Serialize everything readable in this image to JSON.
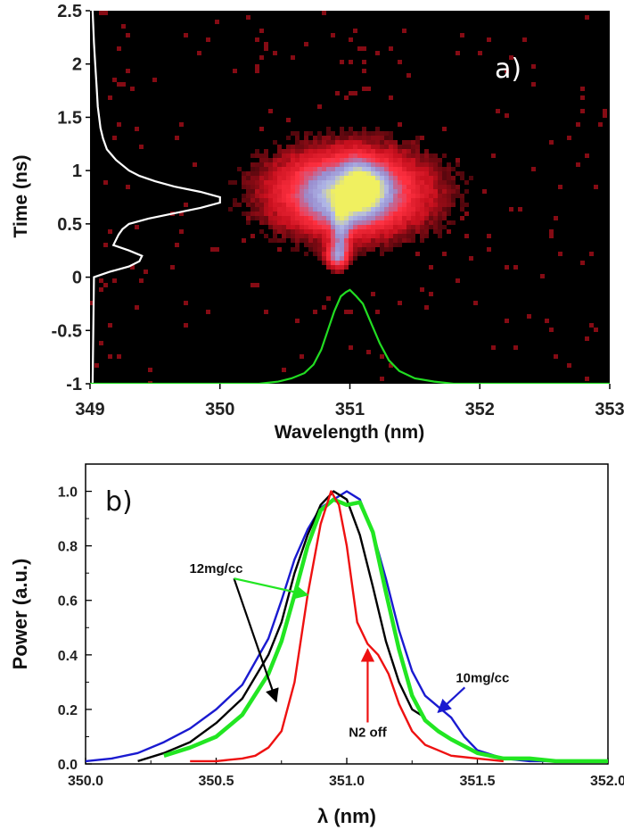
{
  "chart_data": [
    {
      "panel": "a)",
      "type": "heatmap",
      "xlabel": "Wavelength (nm)",
      "ylabel": "Time (ns)",
      "xlim": [
        349,
        353
      ],
      "ylim": [
        -1,
        2.5
      ],
      "xticks": [
        "349",
        "350",
        "351",
        "352",
        "353"
      ],
      "yticks": [
        "-1",
        "-0.5",
        "0",
        "0.5",
        "1",
        "1.5",
        "2",
        "2.5"
      ],
      "background": "#000000",
      "colormap": [
        "#000000",
        "#c8101e",
        "#ff3040",
        "#9a8fd0",
        "#b0b8e8",
        "#f0f060"
      ],
      "blobs": [
        {
          "x": 351.0,
          "y": 0.8,
          "sx": 0.42,
          "sy": 0.28,
          "amp": 0.55
        },
        {
          "x": 350.98,
          "y": 0.75,
          "sx": 0.22,
          "sy": 0.18,
          "amp": 0.35
        },
        {
          "x": 351.07,
          "y": 0.85,
          "sx": 0.08,
          "sy": 0.16,
          "amp": 0.45
        },
        {
          "x": 350.93,
          "y": 0.45,
          "sx": 0.05,
          "sy": 0.18,
          "amp": 0.35
        },
        {
          "x": 350.9,
          "y": 0.2,
          "sx": 0.06,
          "sy": 0.08,
          "amp": 0.45
        },
        {
          "x": 351.22,
          "y": 0.85,
          "sx": 0.07,
          "sy": 0.12,
          "amp": 0.2
        }
      ],
      "overlay_time_profile": {
        "color": "#ffffff",
        "t": [
          -1.0,
          0.0,
          0.05,
          0.1,
          0.15,
          0.2,
          0.25,
          0.3,
          0.35,
          0.4,
          0.45,
          0.5,
          0.55,
          0.6,
          0.65,
          0.7,
          0.75,
          0.8,
          0.85,
          0.9,
          0.95,
          1.0,
          1.1,
          1.2,
          1.3,
          1.4,
          1.5,
          1.6,
          1.8,
          2.0,
          2.2,
          2.5
        ],
        "wavelength": [
          349.02,
          349.03,
          349.15,
          349.3,
          349.38,
          349.4,
          349.3,
          349.18,
          349.2,
          349.22,
          349.25,
          349.3,
          349.45,
          349.65,
          349.85,
          350.0,
          350.0,
          349.85,
          349.65,
          349.5,
          349.38,
          349.3,
          349.2,
          349.13,
          349.1,
          349.08,
          349.07,
          349.06,
          349.05,
          349.04,
          349.03,
          349.02
        ]
      },
      "overlay_spectrum": {
        "color": "#22dd22",
        "wavelength": [
          349.0,
          350.3,
          350.45,
          350.55,
          350.65,
          350.72,
          350.78,
          350.83,
          350.88,
          350.93,
          350.97,
          351.0,
          351.05,
          351.1,
          351.17,
          351.23,
          351.3,
          351.38,
          351.5,
          351.65,
          351.8,
          353.0
        ],
        "time": [
          -1.0,
          -1.0,
          -0.98,
          -0.95,
          -0.9,
          -0.82,
          -0.68,
          -0.5,
          -0.32,
          -0.18,
          -0.14,
          -0.12,
          -0.18,
          -0.25,
          -0.45,
          -0.62,
          -0.78,
          -0.88,
          -0.95,
          -0.98,
          -1.0,
          -1.0
        ]
      }
    },
    {
      "panel": "b)",
      "type": "line",
      "xlabel": "λ (nm)",
      "ylabel": "Power (a.u.)",
      "xlim": [
        350.0,
        352.0
      ],
      "ylim": [
        0.0,
        1.1
      ],
      "xticks": [
        "350.0",
        "350.5",
        "351.0",
        "351.5",
        "352.0"
      ],
      "yticks": [
        "0.0",
        "0.2",
        "0.4",
        "0.6",
        "0.8",
        "1.0"
      ],
      "series": [
        {
          "color": "#1a1ad0",
          "x": [
            350.0,
            350.1,
            350.2,
            350.3,
            350.4,
            350.5,
            350.6,
            350.7,
            350.75,
            350.8,
            350.85,
            350.9,
            350.95,
            351.0,
            351.05,
            351.1,
            351.15,
            351.2,
            351.25,
            351.3,
            351.35,
            351.4,
            351.45,
            351.5,
            351.6,
            351.7,
            352.0
          ],
          "y": [
            0.01,
            0.02,
            0.04,
            0.08,
            0.13,
            0.2,
            0.29,
            0.46,
            0.6,
            0.75,
            0.86,
            0.94,
            0.97,
            1.0,
            0.97,
            0.85,
            0.68,
            0.49,
            0.34,
            0.25,
            0.21,
            0.17,
            0.1,
            0.05,
            0.02,
            0.01,
            0.01
          ]
        },
        {
          "color": "#000000",
          "x": [
            350.2,
            350.3,
            350.4,
            350.5,
            350.6,
            350.7,
            350.75,
            350.8,
            350.85,
            350.9,
            350.95,
            351.0,
            351.05,
            351.1,
            351.15,
            351.2,
            351.25,
            351.3
          ],
          "y": [
            0.01,
            0.04,
            0.08,
            0.15,
            0.24,
            0.4,
            0.52,
            0.7,
            0.84,
            0.95,
            1.0,
            0.97,
            0.84,
            0.65,
            0.45,
            0.3,
            0.2,
            0.17
          ]
        },
        {
          "color": "#22e622",
          "x": [
            350.3,
            350.4,
            350.5,
            350.6,
            350.7,
            350.75,
            350.8,
            350.85,
            350.9,
            350.95,
            351.0,
            351.05,
            351.1,
            351.15,
            351.2,
            351.25,
            351.3,
            351.35,
            351.4,
            351.5,
            351.6,
            351.7,
            351.8,
            351.9,
            352.0
          ],
          "y": [
            0.03,
            0.06,
            0.1,
            0.18,
            0.33,
            0.45,
            0.62,
            0.8,
            0.93,
            0.97,
            0.95,
            0.96,
            0.85,
            0.63,
            0.42,
            0.25,
            0.16,
            0.12,
            0.09,
            0.04,
            0.02,
            0.02,
            0.01,
            0.01,
            0.01
          ]
        },
        {
          "color": "#ee1111",
          "x": [
            350.4,
            350.5,
            350.6,
            350.65,
            350.7,
            350.75,
            350.8,
            350.85,
            350.9,
            350.94,
            350.97,
            351.0,
            351.04,
            351.08,
            351.12,
            351.16,
            351.2,
            351.25,
            351.3,
            351.35,
            351.4,
            351.5,
            351.6
          ],
          "y": [
            0.01,
            0.01,
            0.02,
            0.03,
            0.06,
            0.12,
            0.3,
            0.62,
            0.88,
            1.0,
            0.95,
            0.8,
            0.52,
            0.44,
            0.4,
            0.33,
            0.22,
            0.12,
            0.07,
            0.05,
            0.03,
            0.02,
            0.01
          ]
        }
      ],
      "annotations": [
        {
          "text": "12mg/cc",
          "x": 350.5,
          "y": 0.7,
          "arrows": [
            {
              "color": "#000000",
              "to": [
                350.73,
                0.23
              ]
            },
            {
              "color": "#22e622",
              "to": [
                350.85,
                0.62
              ]
            }
          ]
        },
        {
          "text": "N2 off",
          "x": 351.08,
          "y": 0.1,
          "arrows": [
            {
              "color": "#ee1111",
              "to": [
                351.08,
                0.42
              ]
            }
          ]
        },
        {
          "text": "10mg/cc",
          "x": 351.52,
          "y": 0.3,
          "arrows": [
            {
              "color": "#1a1ad0",
              "to": [
                351.35,
                0.19
              ]
            }
          ]
        }
      ]
    }
  ]
}
